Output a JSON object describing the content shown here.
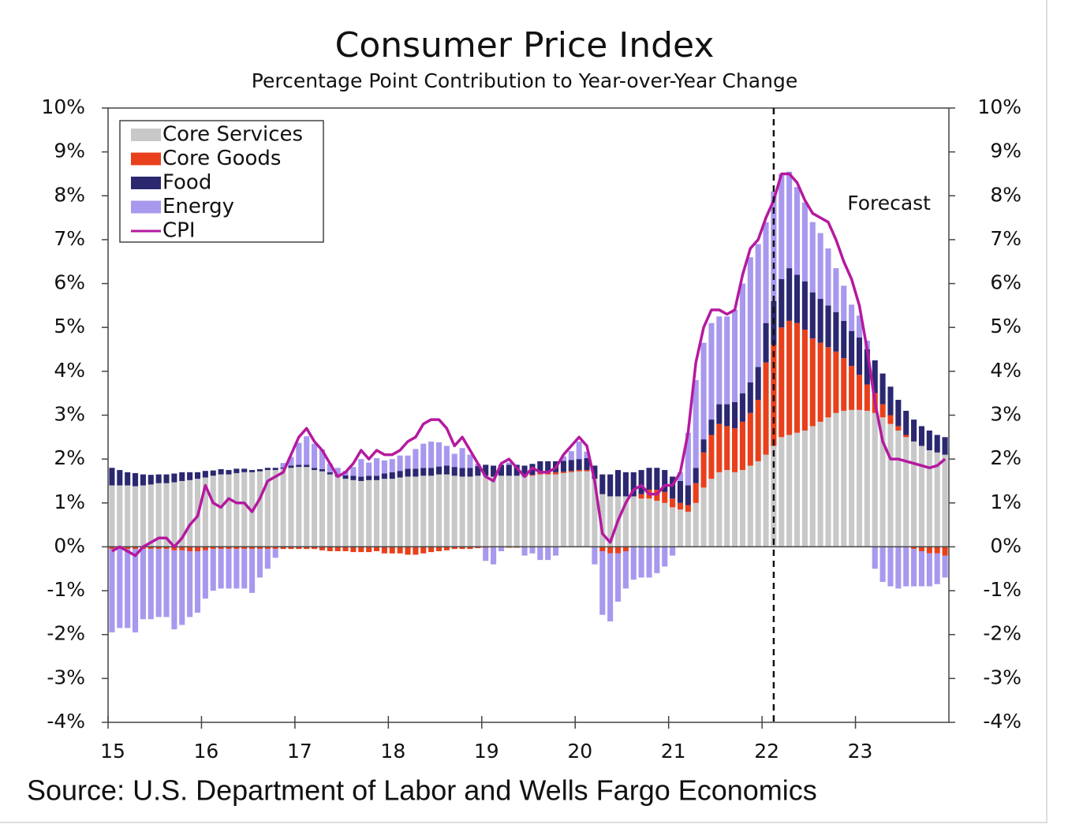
{
  "chart_data": {
    "type": "bar",
    "stacked": true,
    "title": "Consumer Price Index",
    "subtitle": "Percentage Point Contribution to Year-over-Year Change",
    "source": "Source: U.S. Department of Labor and Wells Fargo Economics",
    "annotation": {
      "text": "Forecast",
      "x_index": 85
    },
    "legend": "upper left",
    "categories": [
      "15",
      null,
      null,
      null,
      null,
      null,
      null,
      null,
      null,
      null,
      null,
      null,
      "16",
      null,
      null,
      null,
      null,
      null,
      null,
      null,
      null,
      null,
      null,
      null,
      "17",
      null,
      null,
      null,
      null,
      null,
      null,
      null,
      null,
      null,
      null,
      null,
      "18",
      null,
      null,
      null,
      null,
      null,
      null,
      null,
      null,
      null,
      null,
      null,
      "19",
      null,
      null,
      null,
      null,
      null,
      null,
      null,
      null,
      null,
      null,
      null,
      "20",
      null,
      null,
      null,
      null,
      null,
      null,
      null,
      null,
      null,
      null,
      null,
      "21",
      null,
      null,
      null,
      null,
      null,
      null,
      null,
      null,
      null,
      null,
      null,
      "22",
      null,
      null,
      null,
      null,
      null,
      null,
      null,
      null,
      null,
      null,
      null,
      "23",
      null,
      null,
      null,
      null,
      null,
      null,
      null,
      null,
      null,
      null,
      null
    ],
    "ylim": [
      -4,
      10
    ],
    "yticks": [
      {
        "value": -4,
        "label": "-4%"
      },
      {
        "value": -3,
        "label": "-3%"
      },
      {
        "value": -2,
        "label": "-2%"
      },
      {
        "value": -1,
        "label": "-1%"
      },
      {
        "value": 0,
        "label": "0%"
      },
      {
        "value": 1,
        "label": "1%"
      },
      {
        "value": 2,
        "label": "2%"
      },
      {
        "value": 3,
        "label": "3%"
      },
      {
        "value": 4,
        "label": "4%"
      },
      {
        "value": 5,
        "label": "5%"
      },
      {
        "value": 6,
        "label": "6%"
      },
      {
        "value": 7,
        "label": "7%"
      },
      {
        "value": 8,
        "label": "8%"
      },
      {
        "value": 9,
        "label": "9%"
      },
      {
        "value": 10,
        "label": "10%"
      }
    ],
    "y2lim": [
      -4,
      10
    ],
    "y2ticks": [
      {
        "value": -4,
        "label": "-4%"
      },
      {
        "value": -3,
        "label": "-3%"
      },
      {
        "value": -2,
        "label": "-2%"
      },
      {
        "value": -1,
        "label": "-1%"
      },
      {
        "value": 0,
        "label": "0%"
      },
      {
        "value": 1,
        "label": "1%"
      },
      {
        "value": 2,
        "label": "2%"
      },
      {
        "value": 3,
        "label": "3%"
      },
      {
        "value": 4,
        "label": "4%"
      },
      {
        "value": 5,
        "label": "5%"
      },
      {
        "value": 6,
        "label": "6%"
      },
      {
        "value": 7,
        "label": "7%"
      },
      {
        "value": 8,
        "label": "8%"
      },
      {
        "value": 9,
        "label": "9%"
      },
      {
        "value": 10,
        "label": "10%"
      }
    ],
    "series": [
      {
        "name": "Core Services",
        "color": "#c8c8c8",
        "values": [
          1.4,
          1.4,
          1.4,
          1.38,
          1.4,
          1.42,
          1.45,
          1.45,
          1.47,
          1.5,
          1.52,
          1.55,
          1.58,
          1.62,
          1.65,
          1.65,
          1.68,
          1.7,
          1.7,
          1.72,
          1.75,
          1.75,
          1.78,
          1.8,
          1.82,
          1.82,
          1.75,
          1.72,
          1.65,
          1.6,
          1.55,
          1.52,
          1.5,
          1.52,
          1.52,
          1.55,
          1.55,
          1.58,
          1.6,
          1.6,
          1.62,
          1.62,
          1.65,
          1.65,
          1.62,
          1.6,
          1.6,
          1.62,
          1.62,
          1.6,
          1.62,
          1.62,
          1.62,
          1.6,
          1.62,
          1.65,
          1.65,
          1.65,
          1.68,
          1.7,
          1.72,
          1.72,
          1.55,
          1.2,
          1.15,
          1.15,
          1.15,
          1.15,
          1.1,
          1.1,
          1.05,
          1.0,
          0.9,
          0.85,
          0.8,
          1.0,
          1.35,
          1.55,
          1.7,
          1.75,
          1.7,
          1.75,
          1.85,
          1.95,
          2.1,
          2.3,
          2.5,
          2.55,
          2.6,
          2.65,
          2.75,
          2.85,
          2.95,
          3.05,
          3.1,
          3.12,
          3.12,
          3.1,
          3.05,
          2.95,
          2.8,
          2.65,
          2.5,
          2.4,
          2.3,
          2.2,
          2.15,
          2.1
        ]
      },
      {
        "name": "Core Goods",
        "color": "#e8401c",
        "values": [
          -0.05,
          -0.05,
          -0.05,
          -0.05,
          -0.05,
          -0.05,
          -0.05,
          -0.05,
          -0.08,
          -0.08,
          -0.1,
          -0.1,
          -0.08,
          -0.05,
          -0.05,
          -0.05,
          -0.05,
          -0.05,
          -0.05,
          -0.05,
          -0.05,
          -0.05,
          -0.05,
          -0.05,
          -0.05,
          -0.05,
          -0.05,
          -0.08,
          -0.1,
          -0.1,
          -0.1,
          -0.12,
          -0.12,
          -0.12,
          -0.1,
          -0.15,
          -0.15,
          -0.15,
          -0.18,
          -0.18,
          -0.15,
          -0.12,
          -0.1,
          -0.08,
          -0.05,
          -0.05,
          -0.05,
          -0.03,
          -0.02,
          0.0,
          0.0,
          -0.02,
          -0.02,
          0.0,
          0.02,
          0.05,
          0.05,
          0.05,
          0.03,
          0.03,
          0.03,
          0.03,
          0.0,
          -0.1,
          -0.15,
          -0.15,
          -0.1,
          0.0,
          0.1,
          0.2,
          0.25,
          0.25,
          0.2,
          0.15,
          0.15,
          0.45,
          0.8,
          1.0,
          1.1,
          1.0,
          1.0,
          1.1,
          1.2,
          1.4,
          2.1,
          2.3,
          2.5,
          2.6,
          2.5,
          2.3,
          2.0,
          1.8,
          1.6,
          1.4,
          1.2,
          1.0,
          0.8,
          0.6,
          0.45,
          0.3,
          0.2,
          0.1,
          0.05,
          -0.05,
          -0.1,
          -0.15,
          -0.15,
          -0.2
        ]
      },
      {
        "name": "Food",
        "color": "#2b2870",
        "values": [
          0.4,
          0.35,
          0.3,
          0.3,
          0.25,
          0.22,
          0.2,
          0.2,
          0.2,
          0.2,
          0.18,
          0.15,
          0.15,
          0.12,
          0.12,
          0.1,
          0.1,
          0.08,
          0.05,
          0.05,
          0.05,
          0.05,
          0.03,
          0.05,
          0.05,
          0.05,
          0.05,
          0.05,
          0.05,
          0.05,
          0.08,
          0.1,
          0.1,
          0.1,
          0.1,
          0.12,
          0.15,
          0.15,
          0.18,
          0.18,
          0.18,
          0.18,
          0.18,
          0.2,
          0.2,
          0.2,
          0.2,
          0.22,
          0.25,
          0.25,
          0.25,
          0.25,
          0.25,
          0.25,
          0.25,
          0.25,
          0.25,
          0.25,
          0.25,
          0.25,
          0.25,
          0.27,
          0.3,
          0.45,
          0.5,
          0.6,
          0.55,
          0.55,
          0.55,
          0.5,
          0.5,
          0.5,
          0.5,
          0.5,
          0.45,
          0.35,
          0.3,
          0.35,
          0.45,
          0.5,
          0.6,
          0.65,
          0.7,
          0.75,
          0.9,
          1.0,
          1.1,
          1.2,
          1.1,
          1.1,
          1.05,
          1.0,
          0.95,
          0.9,
          0.85,
          0.8,
          0.85,
          0.8,
          0.75,
          0.7,
          0.65,
          0.6,
          0.55,
          0.5,
          0.45,
          0.45,
          0.4,
          0.4
        ]
      },
      {
        "name": "Energy",
        "color": "#a898ee",
        "values": [
          -1.9,
          -1.8,
          -1.8,
          -1.9,
          -1.6,
          -1.6,
          -1.55,
          -1.55,
          -1.8,
          -1.7,
          -1.5,
          -1.4,
          -1.1,
          -0.95,
          -0.9,
          -0.9,
          -0.9,
          -0.9,
          -1.0,
          -0.65,
          -0.45,
          -0.2,
          0.1,
          0.2,
          0.5,
          0.65,
          0.55,
          0.45,
          0.2,
          0.15,
          0.1,
          0.2,
          0.4,
          0.3,
          0.4,
          0.3,
          0.3,
          0.35,
          0.3,
          0.45,
          0.55,
          0.6,
          0.55,
          0.45,
          0.3,
          0.45,
          0.3,
          0.05,
          -0.3,
          -0.4,
          -0.1,
          0.05,
          0.0,
          -0.2,
          -0.15,
          -0.3,
          -0.3,
          -0.2,
          0.1,
          0.2,
          0.4,
          0.15,
          -0.4,
          -1.45,
          -1.55,
          -1.1,
          -0.85,
          -0.75,
          -0.7,
          -0.7,
          -0.6,
          -0.45,
          -0.2,
          0.2,
          1.2,
          2.0,
          2.2,
          2.2,
          2.0,
          2.0,
          2.1,
          2.5,
          2.85,
          2.8,
          2.3,
          2.5,
          2.4,
          2.2,
          2.0,
          1.8,
          1.6,
          1.5,
          1.3,
          1.0,
          0.8,
          0.6,
          0.5,
          0.2,
          -0.5,
          -0.8,
          -0.9,
          -0.95,
          -0.9,
          -0.85,
          -0.8,
          -0.75,
          -0.7,
          -0.5
        ]
      },
      {
        "name": "CPI",
        "type": "line",
        "color": "#b5199f",
        "values": [
          -0.1,
          0.0,
          -0.1,
          -0.2,
          0.0,
          0.1,
          0.2,
          0.2,
          0.0,
          0.2,
          0.5,
          0.7,
          1.4,
          1.0,
          0.9,
          1.1,
          1.0,
          1.0,
          0.8,
          1.1,
          1.5,
          1.6,
          1.7,
          2.1,
          2.5,
          2.7,
          2.4,
          2.2,
          1.9,
          1.6,
          1.7,
          1.9,
          2.2,
          2.0,
          2.2,
          2.1,
          2.1,
          2.2,
          2.4,
          2.5,
          2.8,
          2.9,
          2.9,
          2.7,
          2.3,
          2.5,
          2.2,
          1.9,
          1.6,
          1.5,
          1.9,
          2.0,
          1.8,
          1.6,
          1.8,
          1.7,
          1.7,
          1.8,
          2.1,
          2.3,
          2.5,
          2.3,
          1.5,
          0.3,
          0.1,
          0.6,
          1.0,
          1.3,
          1.4,
          1.2,
          1.2,
          1.4,
          1.4,
          1.7,
          2.6,
          4.2,
          5.0,
          5.4,
          5.4,
          5.3,
          5.4,
          6.2,
          6.8,
          7.0,
          7.5,
          7.9,
          8.5,
          8.5,
          8.3,
          7.9,
          7.6,
          7.5,
          7.4,
          7.0,
          6.5,
          6.1,
          5.5,
          4.5,
          3.3,
          2.4,
          2.0,
          2.0,
          1.95,
          1.9,
          1.85,
          1.8,
          1.85,
          2.0
        ]
      }
    ]
  }
}
